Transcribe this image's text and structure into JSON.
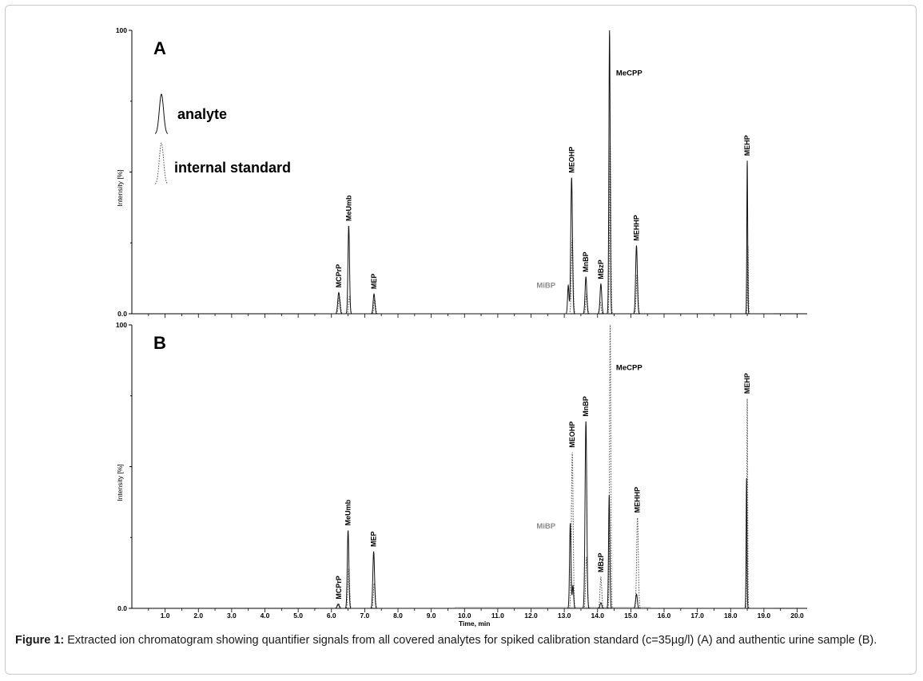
{
  "chart_data": {
    "type": "line",
    "xlabel": "Time, min",
    "ylabel": "Intensity [%]",
    "xlim": [
      0,
      20.3
    ],
    "ylim": [
      0,
      100
    ],
    "xticks": [
      "1.0",
      "2.0",
      "3.0",
      "4.0",
      "5.0",
      "6.0",
      "7.0",
      "8.0",
      "9.0",
      "10.0",
      "11.0",
      "12.0",
      "13.0",
      "14.0",
      "15.0",
      "16.0",
      "17.0",
      "18.0",
      "19.0",
      "20.0"
    ],
    "yticks": [
      "0.0",
      "100"
    ],
    "legend": {
      "analyte_label": "analyte",
      "istd_label": "internal standard",
      "position": "top-left of panel A"
    },
    "panels": [
      {
        "label": "A",
        "analyte_peaks": [
          {
            "rt": 6.22,
            "height": 7.5,
            "width": 0.07
          },
          {
            "rt": 6.52,
            "height": 31,
            "width": 0.055
          },
          {
            "rt": 7.28,
            "height": 7,
            "width": 0.06
          },
          {
            "rt": 13.12,
            "height": 10,
            "width": 0.05
          },
          {
            "rt": 13.22,
            "height": 48,
            "width": 0.06
          },
          {
            "rt": 13.65,
            "height": 13,
            "width": 0.06
          },
          {
            "rt": 14.1,
            "height": 10.5,
            "width": 0.06
          },
          {
            "rt": 14.36,
            "height": 100,
            "width": 0.045
          },
          {
            "rt": 15.17,
            "height": 24,
            "width": 0.06
          },
          {
            "rt": 18.5,
            "height": 54,
            "width": 0.03
          }
        ],
        "istd_peaks": [
          {
            "rt": 6.24,
            "height": 6,
            "width": 0.07
          },
          {
            "rt": 6.54,
            "height": 6,
            "width": 0.055
          },
          {
            "rt": 7.3,
            "height": 5,
            "width": 0.06
          },
          {
            "rt": 13.24,
            "height": 26,
            "width": 0.06
          },
          {
            "rt": 13.67,
            "height": 7,
            "width": 0.06
          },
          {
            "rt": 14.08,
            "height": 4,
            "width": 0.06
          },
          {
            "rt": 14.38,
            "height": 60,
            "width": 0.045
          },
          {
            "rt": 15.19,
            "height": 14,
            "width": 0.06
          },
          {
            "rt": 18.52,
            "height": 24,
            "width": 0.03
          }
        ],
        "annotations": [
          {
            "text": "MCPrP",
            "rt": 6.22,
            "height": 7.5,
            "rotated": true
          },
          {
            "text": "MeUmb",
            "rt": 6.52,
            "height": 31,
            "rotated": true
          },
          {
            "text": "MEP",
            "rt": 7.28,
            "height": 7,
            "rotated": true
          },
          {
            "text": "MiBP",
            "rt": 12.45,
            "height": 10,
            "rotated": false,
            "gray": true
          },
          {
            "text": "MEOHP",
            "rt": 13.22,
            "height": 48,
            "rotated": true
          },
          {
            "text": "MnBP",
            "rt": 13.65,
            "height": 13,
            "rotated": true
          },
          {
            "text": "MBzP",
            "rt": 14.1,
            "height": 10.5,
            "rotated": true
          },
          {
            "text": "MeCPP",
            "rt": 14.95,
            "height": 85,
            "rotated": false
          },
          {
            "text": "MEHHP",
            "rt": 15.17,
            "height": 24,
            "rotated": true
          },
          {
            "text": "MEHP",
            "rt": 18.5,
            "height": 54,
            "rotated": true
          }
        ]
      },
      {
        "label": "B",
        "analyte_peaks": [
          {
            "rt": 6.2,
            "height": 1.5,
            "width": 0.07
          },
          {
            "rt": 6.5,
            "height": 27.5,
            "width": 0.055
          },
          {
            "rt": 7.27,
            "height": 20,
            "width": 0.06
          },
          {
            "rt": 13.18,
            "height": 30,
            "width": 0.05
          },
          {
            "rt": 13.26,
            "height": 8,
            "width": 0.05
          },
          {
            "rt": 13.65,
            "height": 66,
            "width": 0.06
          },
          {
            "rt": 14.1,
            "height": 2,
            "width": 0.06
          },
          {
            "rt": 14.35,
            "height": 40,
            "width": 0.045
          },
          {
            "rt": 15.17,
            "height": 5,
            "width": 0.06
          },
          {
            "rt": 18.48,
            "height": 46,
            "width": 0.03
          }
        ],
        "istd_peaks": [
          {
            "rt": 6.22,
            "height": 1.5,
            "width": 0.07
          },
          {
            "rt": 6.52,
            "height": 14,
            "width": 0.055
          },
          {
            "rt": 7.29,
            "height": 9,
            "width": 0.06
          },
          {
            "rt": 13.24,
            "height": 55,
            "width": 0.06
          },
          {
            "rt": 13.67,
            "height": 18,
            "width": 0.06
          },
          {
            "rt": 14.1,
            "height": 11,
            "width": 0.06
          },
          {
            "rt": 14.38,
            "height": 100,
            "width": 0.045
          },
          {
            "rt": 15.2,
            "height": 32,
            "width": 0.06
          },
          {
            "rt": 18.5,
            "height": 74,
            "width": 0.03
          }
        ],
        "annotations": [
          {
            "text": "MCPrP",
            "rt": 6.22,
            "height": 1.5,
            "rotated": true
          },
          {
            "text": "MeUmb",
            "rt": 6.5,
            "height": 27.5,
            "rotated": true
          },
          {
            "text": "MEP",
            "rt": 7.27,
            "height": 20,
            "rotated": true
          },
          {
            "text": "MiBP",
            "rt": 12.45,
            "height": 29,
            "rotated": false,
            "gray": true
          },
          {
            "text": "MEOHP",
            "rt": 13.24,
            "height": 55,
            "rotated": true
          },
          {
            "text": "MnBP",
            "rt": 13.65,
            "height": 66,
            "rotated": true
          },
          {
            "text": "MBzP",
            "rt": 14.1,
            "height": 11,
            "rotated": true
          },
          {
            "text": "MeCPP",
            "rt": 14.95,
            "height": 85,
            "rotated": false
          },
          {
            "text": "MEHHP",
            "rt": 15.2,
            "height": 32,
            "rotated": true
          },
          {
            "text": "MEHP",
            "rt": 18.5,
            "height": 74,
            "rotated": true
          }
        ]
      }
    ]
  },
  "caption": {
    "label": "Figure 1:",
    "text": " Extracted ion chromatogram showing quantifier signals from all covered analytes for spiked calibration standard (c=35µg/l) (A) and authentic urine sample (B)."
  },
  "colors": {
    "analyte": "#111111",
    "istd": "#555555",
    "mibp_label": "#8a8a8a"
  }
}
